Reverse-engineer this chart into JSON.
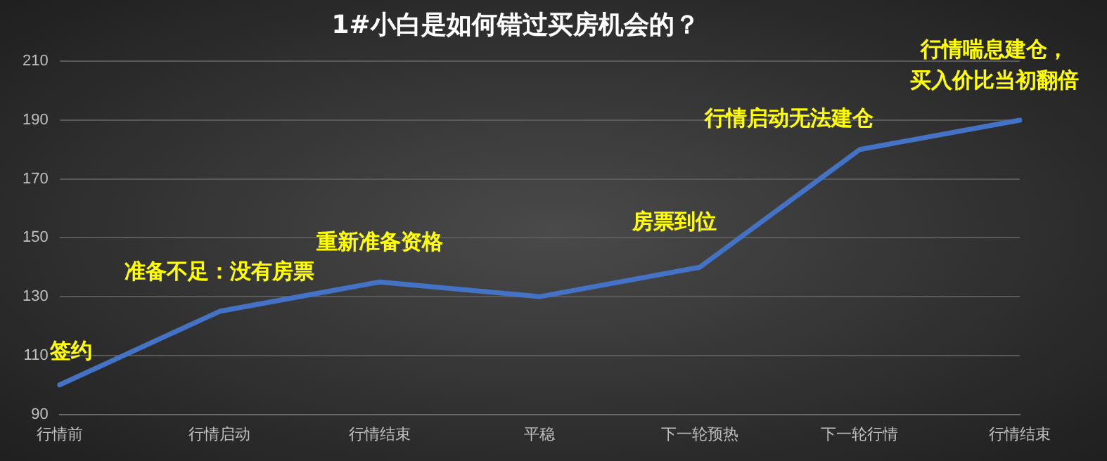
{
  "chart_data": {
    "type": "line",
    "title": "1#小白是如何错过买房机会的？",
    "categories": [
      "行情前",
      "行情启动",
      "行情结束",
      "平稳",
      "下一轮预热",
      "下一轮行情",
      "行情结束"
    ],
    "series": [
      {
        "color": "#4472c4",
        "values": [
          100,
          125,
          135,
          130,
          140,
          180,
          190
        ]
      }
    ],
    "ylim": [
      90,
      210
    ],
    "yticks": [
      90,
      110,
      130,
      150,
      170,
      190,
      210
    ],
    "grid": "y",
    "legend": false,
    "marker": "none",
    "line_style": "solid",
    "annotations": [
      {
        "text": "签约",
        "x": "行情前",
        "y": 100
      },
      {
        "text": "准备不足：没有房票",
        "x": "行情启动",
        "y": 125
      },
      {
        "text": "重新准备资格",
        "x": "行情结束",
        "y": 135
      },
      {
        "text": "房票到位",
        "x": "下一轮预热",
        "y": 140
      },
      {
        "text": "行情启动无法建仓",
        "x": "下一轮行情",
        "y": 180
      },
      "行情喘息建仓，",
      "买入价比当初翻倍"
    ]
  }
}
